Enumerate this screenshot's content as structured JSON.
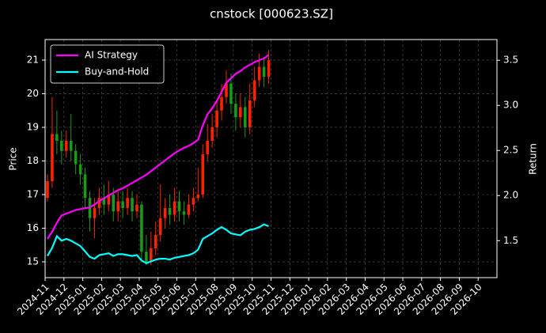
{
  "chart_data": {
    "type": "candlestick",
    "title": "cnstock [000623.SZ]",
    "ylabel": "Price",
    "y2label": "Return",
    "x": [
      "2024-11",
      "2024-11",
      "2024-11",
      "2024-11",
      "2024-12",
      "2024-12",
      "2024-12",
      "2024-12",
      "2025-01",
      "2025-01",
      "2025-01",
      "2025-01",
      "2025-02",
      "2025-02",
      "2025-02",
      "2025-02",
      "2025-03",
      "2025-03",
      "2025-03",
      "2025-03",
      "2025-04",
      "2025-04",
      "2025-04",
      "2025-04",
      "2025-05",
      "2025-05",
      "2025-05",
      "2025-05",
      "2025-06",
      "2025-06",
      "2025-06",
      "2025-06",
      "2025-07",
      "2025-07",
      "2025-07",
      "2025-07",
      "2025-08",
      "2025-08",
      "2025-08",
      "2025-08",
      "2025-09",
      "2025-09",
      "2025-09",
      "2025-09",
      "2025-10",
      "2025-10",
      "2025-10",
      "2025-10"
    ],
    "open": [
      16.9,
      17.4,
      18.8,
      18.6,
      18.3,
      18.6,
      18.3,
      17.9,
      17.6,
      16.9,
      16.3,
      16.6,
      16.9,
      16.7,
      17.0,
      16.5,
      16.8,
      16.6,
      16.9,
      16.5,
      16.7,
      15.3,
      15.0,
      15.4,
      15.8,
      16.3,
      16.6,
      16.4,
      16.8,
      16.5,
      16.4,
      16.7,
      16.9,
      17.0,
      18.2,
      18.6,
      19.0,
      19.5,
      19.9,
      20.3,
      19.7,
      19.3,
      19.6,
      19.0,
      19.8,
      20.4,
      20.8,
      20.5
    ],
    "high": [
      17.6,
      19.9,
      19.5,
      18.9,
      18.9,
      19.4,
      18.5,
      18.2,
      17.8,
      17.1,
      16.9,
      17.2,
      17.3,
      17.4,
      17.2,
      17.1,
      17.1,
      17.2,
      17.1,
      17.0,
      16.8,
      15.8,
      15.9,
      16.2,
      17.3,
      16.9,
      17.0,
      17.2,
      17.1,
      16.8,
      17.0,
      17.2,
      17.8,
      18.5,
      19.1,
      19.4,
      19.8,
      20.3,
      20.7,
      20.6,
      20.0,
      20.0,
      19.9,
      20.3,
      20.8,
      21.2,
      21.1,
      21.3
    ],
    "low": [
      16.8,
      17.2,
      18.2,
      17.9,
      18.1,
      18.0,
      17.6,
      17.3,
      16.6,
      15.9,
      15.7,
      16.4,
      16.4,
      16.5,
      16.2,
      16.2,
      16.3,
      16.4,
      16.2,
      16.3,
      15.0,
      14.9,
      14.9,
      15.2,
      15.6,
      16.0,
      16.1,
      16.2,
      16.2,
      16.1,
      16.3,
      16.5,
      16.8,
      16.9,
      18.0,
      18.4,
      18.7,
      19.2,
      19.7,
      19.4,
      18.9,
      19.0,
      18.7,
      18.8,
      19.6,
      20.2,
      20.2,
      20.3
    ],
    "close": [
      17.4,
      18.8,
      18.6,
      18.3,
      18.6,
      18.3,
      17.9,
      17.6,
      16.9,
      16.3,
      16.6,
      16.9,
      16.7,
      17.0,
      16.5,
      16.8,
      16.6,
      16.9,
      16.5,
      16.7,
      15.3,
      15.0,
      15.4,
      15.8,
      16.3,
      16.6,
      16.4,
      16.8,
      16.5,
      16.4,
      16.7,
      16.9,
      17.0,
      18.2,
      18.6,
      19.0,
      19.5,
      19.9,
      20.3,
      19.7,
      19.3,
      19.6,
      19.0,
      19.8,
      20.4,
      20.8,
      20.5,
      21.0
    ],
    "up_color": "#ff2200",
    "down_color": "#1a9a1a",
    "series": [
      {
        "name": "AI Strategy",
        "color": "#ff00ff",
        "axis": "y2",
        "values": [
          1.52,
          1.6,
          1.7,
          1.78,
          1.8,
          1.82,
          1.84,
          1.85,
          1.86,
          1.87,
          1.9,
          1.94,
          1.97,
          2.0,
          2.03,
          2.06,
          2.08,
          2.11,
          2.14,
          2.17,
          2.2,
          2.23,
          2.27,
          2.31,
          2.35,
          2.39,
          2.43,
          2.47,
          2.5,
          2.53,
          2.55,
          2.58,
          2.62,
          2.78,
          2.9,
          2.97,
          3.05,
          3.15,
          3.25,
          3.3,
          3.35,
          3.38,
          3.42,
          3.45,
          3.48,
          3.5,
          3.52,
          3.56
        ]
      },
      {
        "name": "Buy-and-Hold",
        "color": "#00ffff",
        "axis": "y2",
        "values": [
          1.33,
          1.42,
          1.55,
          1.5,
          1.52,
          1.5,
          1.47,
          1.44,
          1.38,
          1.32,
          1.3,
          1.34,
          1.35,
          1.36,
          1.33,
          1.35,
          1.35,
          1.34,
          1.33,
          1.34,
          1.28,
          1.25,
          1.27,
          1.29,
          1.3,
          1.3,
          1.29,
          1.31,
          1.32,
          1.33,
          1.34,
          1.36,
          1.4,
          1.52,
          1.55,
          1.58,
          1.62,
          1.65,
          1.62,
          1.58,
          1.57,
          1.56,
          1.6,
          1.62,
          1.63,
          1.65,
          1.68,
          1.66
        ]
      }
    ],
    "xlim": [
      "2024-11",
      "2026-11"
    ],
    "xticks": [
      "2024-11",
      "2024-12",
      "2025-01",
      "2025-02",
      "2025-03",
      "2025-04",
      "2025-05",
      "2025-06",
      "2025-07",
      "2025-08",
      "2025-09",
      "2025-10",
      "2025-11",
      "2025-12",
      "2026-01",
      "2026-02",
      "2026-03",
      "2026-04",
      "2026-05",
      "2026-06",
      "2026-07",
      "2026-08",
      "2026-09",
      "2026-10"
    ],
    "ylim": [
      14.53,
      21.61
    ],
    "yticks": [
      15,
      16,
      17,
      18,
      19,
      20,
      21
    ],
    "y2lim": [
      1.09,
      3.73
    ],
    "y2ticks": [
      {
        "value": 1.5,
        "label": "1.5"
      },
      {
        "value": 2.0,
        "label": "2.0"
      },
      {
        "value": 2.5,
        "label": "2.5"
      },
      {
        "value": 3.0,
        "label": "3.0"
      },
      {
        "value": 3.5,
        "label": "3.5"
      }
    ],
    "grid": true,
    "legend": "upper left"
  }
}
